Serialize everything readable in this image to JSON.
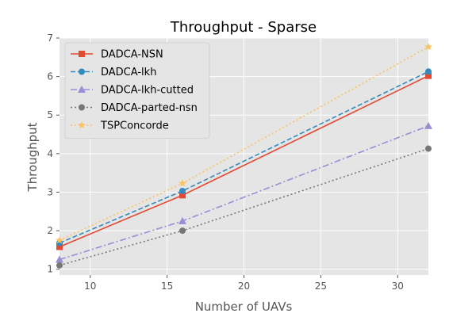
{
  "chart_data": {
    "type": "line",
    "title": "Throughput - Sparse",
    "xlabel": "Number of UAVs",
    "ylabel": "Throughput",
    "xlim": [
      8,
      32
    ],
    "ylim": [
      0.85,
      7.0
    ],
    "xticks": [
      10,
      15,
      20,
      25,
      30
    ],
    "yticks": [
      1,
      2,
      3,
      4,
      5,
      6,
      7
    ],
    "grid": true,
    "legend_position": "top-left",
    "x": [
      8,
      16,
      32
    ],
    "series": [
      {
        "name": "DADCA-NSN",
        "values": [
          1.58,
          2.92,
          6.02
        ],
        "color": "#E24A33",
        "marker": "square",
        "dash": "solid"
      },
      {
        "name": "DADCA-lkh",
        "values": [
          1.68,
          3.03,
          6.13
        ],
        "color": "#348ABD",
        "marker": "circle",
        "dash": "dashed"
      },
      {
        "name": "DADCA-lkh-cutted",
        "values": [
          1.25,
          2.25,
          4.72
        ],
        "color": "#988ED5",
        "marker": "triangle",
        "dash": "dashdot"
      },
      {
        "name": "DADCA-parted-nsn",
        "values": [
          1.1,
          2.0,
          4.13
        ],
        "color": "#777777",
        "marker": "circle",
        "dash": "dotted"
      },
      {
        "name": "TSPConcorde",
        "values": [
          1.75,
          3.23,
          6.77
        ],
        "color": "#FBC15E",
        "marker": "star",
        "dash": "dotted"
      }
    ]
  }
}
